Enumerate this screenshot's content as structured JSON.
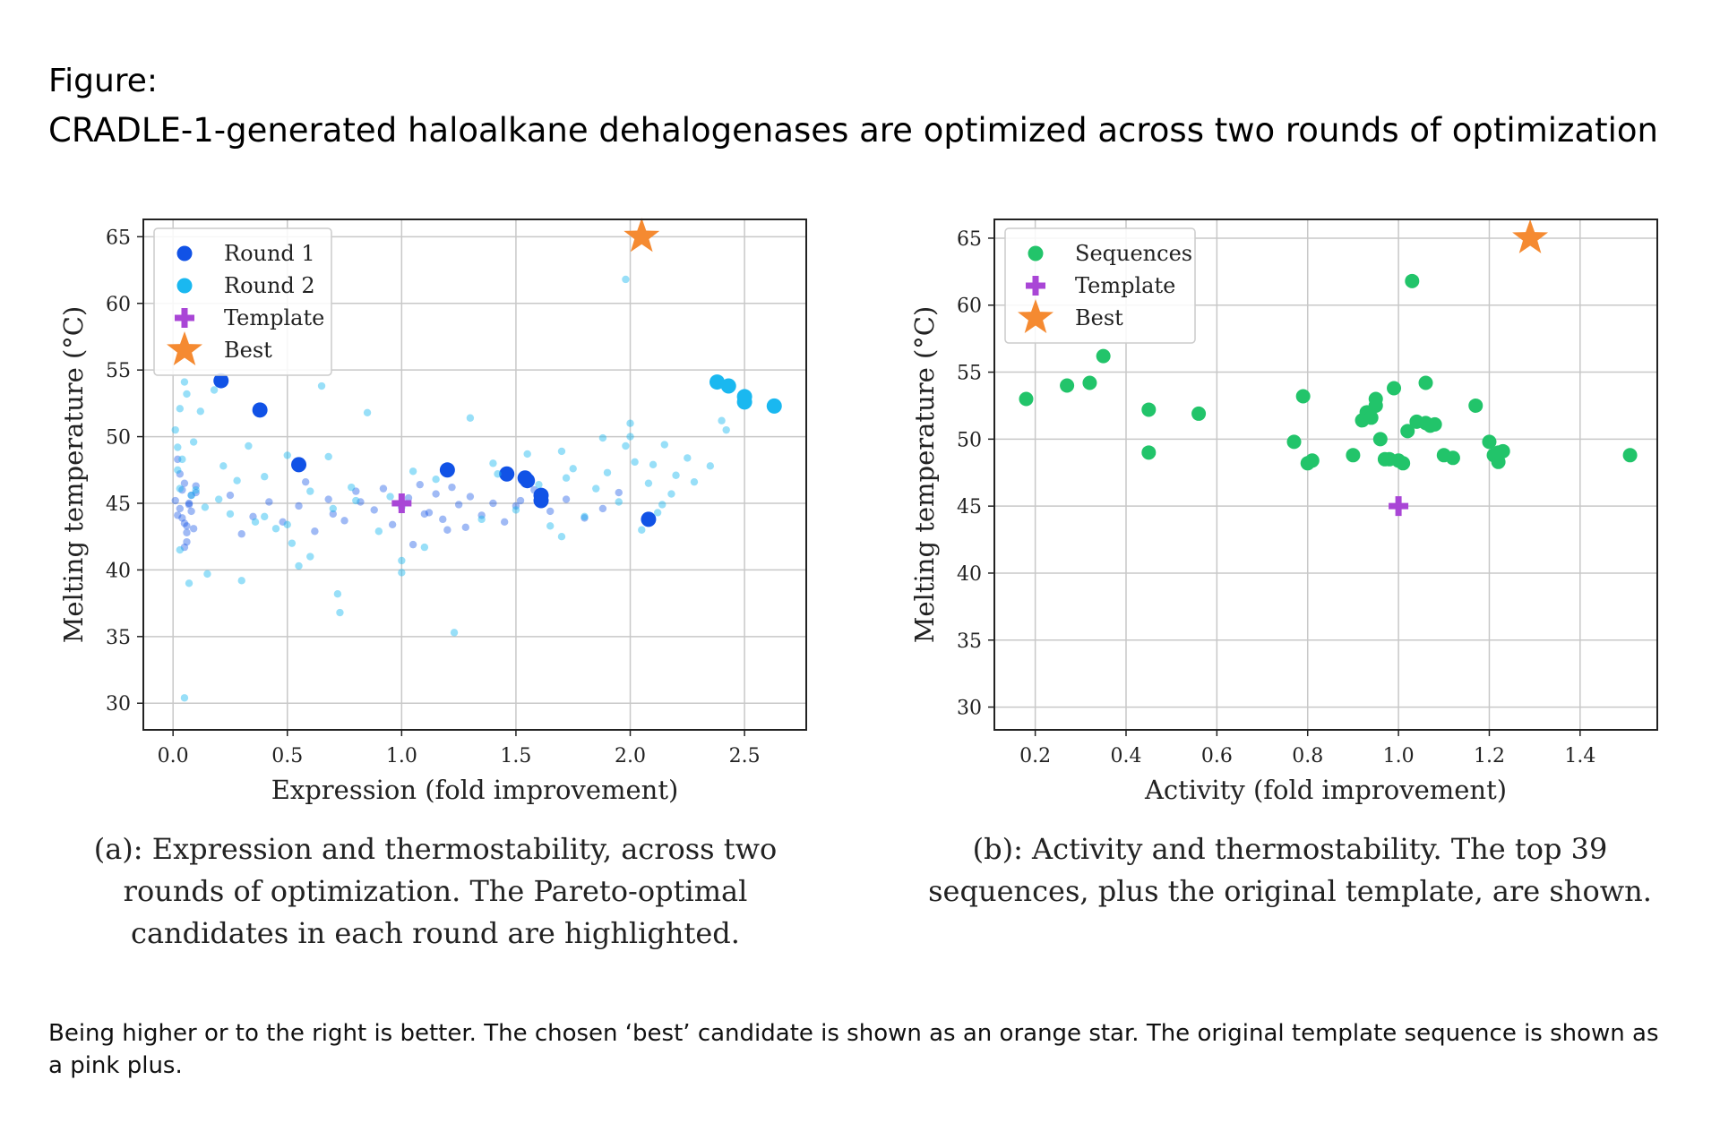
{
  "figure": {
    "label": "Figure:",
    "title": "CRADLE-1-generated haloalkane dehalogenases are optimized across two rounds of optimization",
    "footnote": "Being higher or to the right is better. The chosen ‘best’ candidate is shown as an orange star. The original template sequence is shown as a pink plus."
  },
  "colors": {
    "round1": "#1152e6",
    "round2": "#1ab8f0",
    "template": "#a946d6",
    "best": "#f58a31",
    "sequences": "#22c46a",
    "grid": "#c8c8c8"
  },
  "captions": {
    "a": "(a): Expression and thermostability, across two rounds of optimization. The Pareto-optimal candidates in each round are highlighted.",
    "b": "(b): Activity and thermostability. The top 39 sequences, plus the original template, are shown."
  },
  "chart_data": [
    {
      "type": "scatter",
      "id": "a",
      "xlabel": "Expression (fold improvement)",
      "ylabel": "Melting temperature (°C)",
      "xlim": [
        -0.13,
        2.77
      ],
      "ylim": [
        28,
        66.3
      ],
      "xticks": [
        "0.0",
        "0.5",
        "1.0",
        "1.5",
        "2.0",
        "2.5"
      ],
      "yticks": [
        "30",
        "35",
        "40",
        "45",
        "50",
        "55",
        "60",
        "65"
      ],
      "grid": true,
      "legend_position": "top-left",
      "legend": [
        "Round 1",
        "Round 2",
        "Template",
        "Best"
      ],
      "series": [
        {
          "name": "Round 1",
          "role": "pareto",
          "x": [
            0.21,
            0.38,
            0.55,
            1.2,
            1.46,
            1.54,
            1.55,
            1.61,
            1.61,
            2.08
          ],
          "y": [
            54.2,
            52.0,
            47.9,
            47.5,
            47.2,
            46.9,
            46.7,
            45.6,
            45.2,
            43.8
          ]
        },
        {
          "name": "Round 2",
          "role": "pareto",
          "x": [
            2.38,
            2.43,
            2.5,
            2.5,
            2.63
          ],
          "y": [
            54.1,
            53.8,
            53.0,
            52.6,
            52.3
          ]
        },
        {
          "name": "Round 1",
          "role": "background",
          "x": [
            0.01,
            0.02,
            0.04,
            0.05,
            0.06,
            0.07,
            0.08,
            0.03,
            0.05,
            0.09,
            0.1,
            0.03,
            0.06,
            0.07,
            0.02,
            0.04,
            0.08,
            0.1,
            0.05,
            0.06,
            0.35,
            0.42,
            0.48,
            0.55,
            0.62,
            0.68,
            0.7,
            0.75,
            0.8,
            0.88,
            0.92,
            0.96,
            1.0,
            1.03,
            1.05,
            1.08,
            1.12,
            1.15,
            1.18,
            1.22,
            1.25,
            1.28,
            1.3,
            1.35,
            1.4,
            1.45,
            1.5,
            1.52,
            1.58,
            1.65,
            1.72,
            1.8,
            1.88,
            1.95,
            0.25,
            0.3,
            0.58,
            0.82,
            1.1,
            1.2
          ],
          "y": [
            45.2,
            44.1,
            46.0,
            43.5,
            42.8,
            44.9,
            45.6,
            47.2,
            41.7,
            43.1,
            46.3,
            44.6,
            42.1,
            45.0,
            48.3,
            43.9,
            44.4,
            45.8,
            46.5,
            43.3,
            44.0,
            45.1,
            43.6,
            44.8,
            42.9,
            45.3,
            44.2,
            43.7,
            45.9,
            44.5,
            46.1,
            43.4,
            44.7,
            45.4,
            41.9,
            46.4,
            44.3,
            45.7,
            43.8,
            46.2,
            44.9,
            43.2,
            45.5,
            44.1,
            45.0,
            43.6,
            44.8,
            45.2,
            46.0,
            44.4,
            45.3,
            43.9,
            44.6,
            45.8,
            45.6,
            42.7,
            46.6,
            45.1,
            44.2,
            43.0
          ]
        },
        {
          "name": "Round 2",
          "role": "background",
          "x": [
            0.01,
            0.02,
            0.03,
            0.04,
            0.05,
            0.06,
            0.02,
            0.03,
            0.08,
            0.12,
            0.15,
            0.18,
            0.2,
            0.22,
            0.25,
            0.28,
            0.3,
            0.33,
            0.36,
            0.4,
            0.45,
            0.5,
            0.52,
            0.55,
            0.6,
            0.65,
            0.68,
            0.7,
            0.72,
            0.73,
            0.78,
            0.85,
            0.9,
            0.95,
            1.0,
            1.05,
            1.1,
            1.15,
            1.23,
            1.3,
            1.35,
            1.42,
            1.5,
            1.55,
            1.6,
            1.65,
            1.7,
            1.72,
            1.75,
            1.8,
            1.85,
            1.88,
            1.9,
            1.95,
            1.98,
            2.0,
            2.02,
            2.05,
            2.08,
            2.1,
            2.12,
            2.15,
            2.18,
            2.2,
            2.25,
            2.28,
            2.35,
            2.4,
            2.42,
            1.98,
            0.05,
            0.1,
            0.03,
            0.07,
            0.14,
            0.09,
            0.4,
            0.6,
            0.8,
            1.4,
            1.7,
            2.0,
            2.14,
            0.5,
            1.0
          ],
          "y": [
            50.5,
            49.2,
            52.1,
            48.3,
            54.1,
            53.2,
            47.5,
            46.1,
            45.6,
            51.9,
            39.7,
            53.5,
            45.3,
            47.8,
            44.2,
            46.7,
            39.2,
            49.3,
            43.6,
            47.0,
            43.1,
            48.6,
            42.0,
            40.3,
            45.9,
            53.8,
            48.5,
            44.6,
            38.2,
            36.8,
            46.2,
            51.8,
            42.9,
            45.5,
            39.8,
            47.4,
            41.7,
            46.8,
            35.3,
            51.4,
            43.8,
            47.2,
            44.5,
            48.7,
            46.4,
            43.3,
            48.9,
            46.9,
            47.6,
            44.0,
            46.1,
            49.9,
            47.3,
            45.1,
            61.8,
            50.0,
            48.1,
            43.0,
            46.5,
            47.9,
            44.3,
            49.4,
            45.7,
            47.1,
            48.4,
            46.6,
            47.8,
            51.2,
            50.5,
            49.3,
            30.4,
            46.0,
            41.5,
            39.0,
            44.7,
            49.6,
            44.0,
            41.0,
            45.2,
            48.0,
            42.5,
            51.0,
            44.9,
            43.4,
            40.7
          ]
        },
        {
          "name": "Template",
          "x": [
            1.0
          ],
          "y": [
            45.0
          ]
        },
        {
          "name": "Best",
          "x": [
            2.05
          ],
          "y": [
            65.0
          ]
        }
      ]
    },
    {
      "type": "scatter",
      "id": "b",
      "xlabel": "Activity (fold improvement)",
      "ylabel": "Melting temperature (°C)",
      "xlim": [
        0.11,
        1.57
      ],
      "ylim": [
        28.3,
        66.4
      ],
      "xticks": [
        "0.2",
        "0.4",
        "0.6",
        "0.8",
        "1.0",
        "1.2",
        "1.4"
      ],
      "yticks": [
        "30",
        "35",
        "40",
        "45",
        "50",
        "55",
        "60",
        "65"
      ],
      "grid": true,
      "legend_position": "top-left",
      "legend": [
        "Sequences",
        "Template",
        "Best"
      ],
      "series": [
        {
          "name": "Sequences",
          "x": [
            0.18,
            0.27,
            0.32,
            0.35,
            0.45,
            0.45,
            0.56,
            0.77,
            0.79,
            0.8,
            0.81,
            0.9,
            0.92,
            0.93,
            0.94,
            0.95,
            0.95,
            0.96,
            0.97,
            0.98,
            0.99,
            1.0,
            1.01,
            1.02,
            1.03,
            1.04,
            1.06,
            1.07,
            1.08,
            1.1,
            1.12,
            1.17,
            1.2,
            1.21,
            1.22,
            1.22,
            1.23,
            1.51,
            1.06
          ],
          "y": [
            53.0,
            54.0,
            54.2,
            56.2,
            52.2,
            49.0,
            51.9,
            49.8,
            53.2,
            48.2,
            48.4,
            48.8,
            51.4,
            52.0,
            51.6,
            52.5,
            53.0,
            50.0,
            48.5,
            48.5,
            53.8,
            48.4,
            48.2,
            50.6,
            61.8,
            51.3,
            54.2,
            51.0,
            51.1,
            48.8,
            48.6,
            52.5,
            49.8,
            48.8,
            48.3,
            49.0,
            49.1,
            48.8,
            51.2
          ]
        },
        {
          "name": "Template",
          "x": [
            1.0
          ],
          "y": [
            45.0
          ]
        },
        {
          "name": "Best",
          "x": [
            1.29
          ],
          "y": [
            65.0
          ]
        }
      ]
    }
  ]
}
